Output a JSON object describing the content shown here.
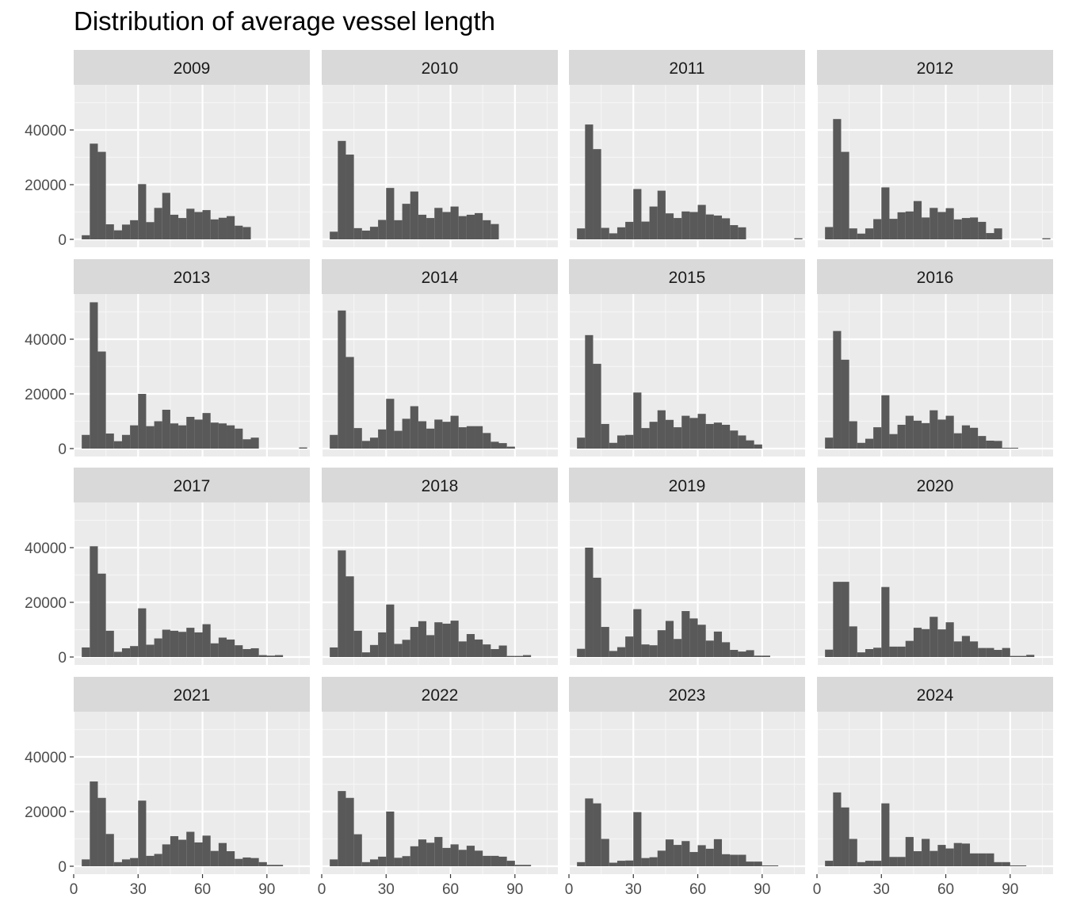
{
  "chart_data": {
    "type": "bar",
    "title": "Distribution of average vessel length",
    "facet_variable": "year",
    "xlim": [
      0,
      110
    ],
    "ylim": [
      0,
      54000
    ],
    "x_ticks": [
      0,
      30,
      60,
      90
    ],
    "x_tick_labels": [
      "0",
      "30",
      "60",
      "90"
    ],
    "y_ticks": [
      0,
      20000,
      40000
    ],
    "y_tick_labels": [
      "0",
      "20000",
      "40000"
    ],
    "grid": true,
    "bin_width": 3.75,
    "bin_starts": [
      3.75,
      7.5,
      11.25,
      15,
      18.75,
      22.5,
      26.25,
      30,
      33.75,
      37.5,
      41.25,
      45,
      48.75,
      52.5,
      56.25,
      60,
      63.75,
      67.5,
      71.25,
      75,
      78.75,
      82.5,
      86.25,
      90,
      93.75,
      97.5,
      101.25,
      105
    ],
    "panels": [
      {
        "year": "2009",
        "counts": [
          1500,
          35000,
          32000,
          5500,
          3300,
          5400,
          7000,
          20200,
          6300,
          11500,
          17000,
          9000,
          7800,
          11200,
          10000,
          10700,
          7300,
          7900,
          8500,
          5000,
          4500,
          0,
          0,
          0,
          0,
          0,
          0,
          0
        ]
      },
      {
        "year": "2010",
        "counts": [
          2800,
          36000,
          31000,
          4100,
          3200,
          4600,
          7100,
          18800,
          7000,
          13000,
          17500,
          9000,
          7800,
          11500,
          10000,
          12000,
          8500,
          9000,
          9600,
          7000,
          5600,
          0,
          0,
          0,
          0,
          0,
          0,
          0
        ]
      },
      {
        "year": "2011",
        "counts": [
          4000,
          42000,
          33000,
          4200,
          2200,
          4400,
          6400,
          18400,
          6500,
          12000,
          17800,
          9500,
          7800,
          10200,
          10000,
          12600,
          9100,
          8700,
          7700,
          5200,
          4400,
          0,
          0,
          0,
          0,
          0,
          0,
          400
        ]
      },
      {
        "year": "2012",
        "counts": [
          4500,
          44000,
          32000,
          4000,
          2100,
          4000,
          7400,
          19000,
          7500,
          9900,
          10200,
          14000,
          8000,
          11500,
          10000,
          11400,
          7300,
          7800,
          8000,
          6400,
          2300,
          4000,
          0,
          0,
          0,
          0,
          0,
          400
        ]
      },
      {
        "year": "2013",
        "counts": [
          5000,
          53500,
          35500,
          5500,
          2700,
          5000,
          8500,
          20000,
          8200,
          10000,
          14200,
          9200,
          8500,
          11600,
          10600,
          13000,
          9500,
          9200,
          8500,
          7300,
          3400,
          4000,
          0,
          0,
          0,
          0,
          0,
          400
        ]
      },
      {
        "year": "2014",
        "counts": [
          5000,
          50500,
          33500,
          7500,
          2800,
          4000,
          7000,
          18200,
          6500,
          10900,
          15500,
          10000,
          7300,
          10600,
          9800,
          12000,
          7800,
          8200,
          8200,
          5700,
          2500,
          2000,
          700,
          0,
          0,
          0,
          0,
          0
        ]
      },
      {
        "year": "2015",
        "counts": [
          4000,
          41500,
          31000,
          9000,
          2100,
          4800,
          5000,
          20500,
          7500,
          9800,
          14000,
          10500,
          7800,
          12000,
          11200,
          12700,
          9000,
          9500,
          8700,
          6600,
          4800,
          3000,
          1500,
          0,
          0,
          0,
          0,
          0
        ]
      },
      {
        "year": "2016",
        "counts": [
          4000,
          43000,
          32500,
          10000,
          2100,
          3600,
          7800,
          19500,
          5300,
          8700,
          12000,
          10200,
          9300,
          14000,
          10600,
          12000,
          5600,
          8500,
          7600,
          4600,
          2900,
          2800,
          300,
          300,
          0,
          0,
          0,
          0
        ]
      },
      {
        "year": "2017",
        "counts": [
          3500,
          40500,
          30500,
          9600,
          1900,
          3200,
          4000,
          17800,
          4500,
          6800,
          10000,
          9600,
          9200,
          10700,
          9000,
          12000,
          5000,
          7100,
          6400,
          4300,
          2900,
          3200,
          700,
          500,
          700,
          0,
          0,
          0
        ]
      },
      {
        "year": "2018",
        "counts": [
          3500,
          39000,
          29500,
          9600,
          1700,
          4400,
          9000,
          19200,
          4800,
          6300,
          11000,
          13100,
          8000,
          12700,
          12200,
          13300,
          5700,
          8400,
          6400,
          4600,
          2900,
          4200,
          400,
          400,
          700,
          0,
          0,
          0
        ]
      },
      {
        "year": "2019",
        "counts": [
          3000,
          40000,
          29000,
          11000,
          2200,
          3600,
          7500,
          17500,
          4600,
          4300,
          9800,
          13200,
          6600,
          16800,
          14100,
          11800,
          6000,
          9300,
          5400,
          2600,
          2000,
          2500,
          500,
          500,
          0,
          0,
          0,
          0
        ]
      },
      {
        "year": "2020",
        "counts": [
          2700,
          27500,
          27500,
          11200,
          1700,
          2900,
          3400,
          25600,
          3800,
          3800,
          5900,
          10700,
          10200,
          14700,
          10100,
          12700,
          5700,
          7700,
          5700,
          3300,
          3300,
          2600,
          3300,
          400,
          400,
          800,
          0,
          0
        ]
      },
      {
        "year": "2021",
        "counts": [
          2500,
          31000,
          25000,
          11800,
          1500,
          2500,
          3000,
          24000,
          3800,
          4500,
          8000,
          11000,
          9700,
          12600,
          8700,
          11200,
          5600,
          8500,
          5500,
          2700,
          3200,
          3000,
          1500,
          500,
          500,
          0,
          0,
          0
        ]
      },
      {
        "year": "2022",
        "counts": [
          2500,
          27500,
          25000,
          11700,
          1500,
          2500,
          3500,
          20000,
          3100,
          3700,
          7300,
          9800,
          8600,
          10700,
          6700,
          8000,
          6000,
          7500,
          5700,
          3800,
          3800,
          3500,
          2000,
          500,
          500,
          0,
          0,
          0
        ]
      },
      {
        "year": "2023",
        "counts": [
          1500,
          24800,
          23000,
          10000,
          1300,
          2000,
          2100,
          19800,
          3000,
          3300,
          5700,
          9800,
          7800,
          9200,
          5200,
          7700,
          6400,
          9900,
          4400,
          4200,
          4200,
          1700,
          1700,
          300,
          300,
          0,
          0,
          0
        ]
      },
      {
        "year": "2024",
        "counts": [
          2000,
          27000,
          21500,
          10000,
          1500,
          2000,
          2000,
          23000,
          3400,
          3400,
          10700,
          5500,
          10000,
          5600,
          7800,
          6500,
          8500,
          8300,
          4700,
          4700,
          4700,
          1500,
          1500,
          300,
          300,
          0,
          0,
          0
        ]
      }
    ]
  }
}
